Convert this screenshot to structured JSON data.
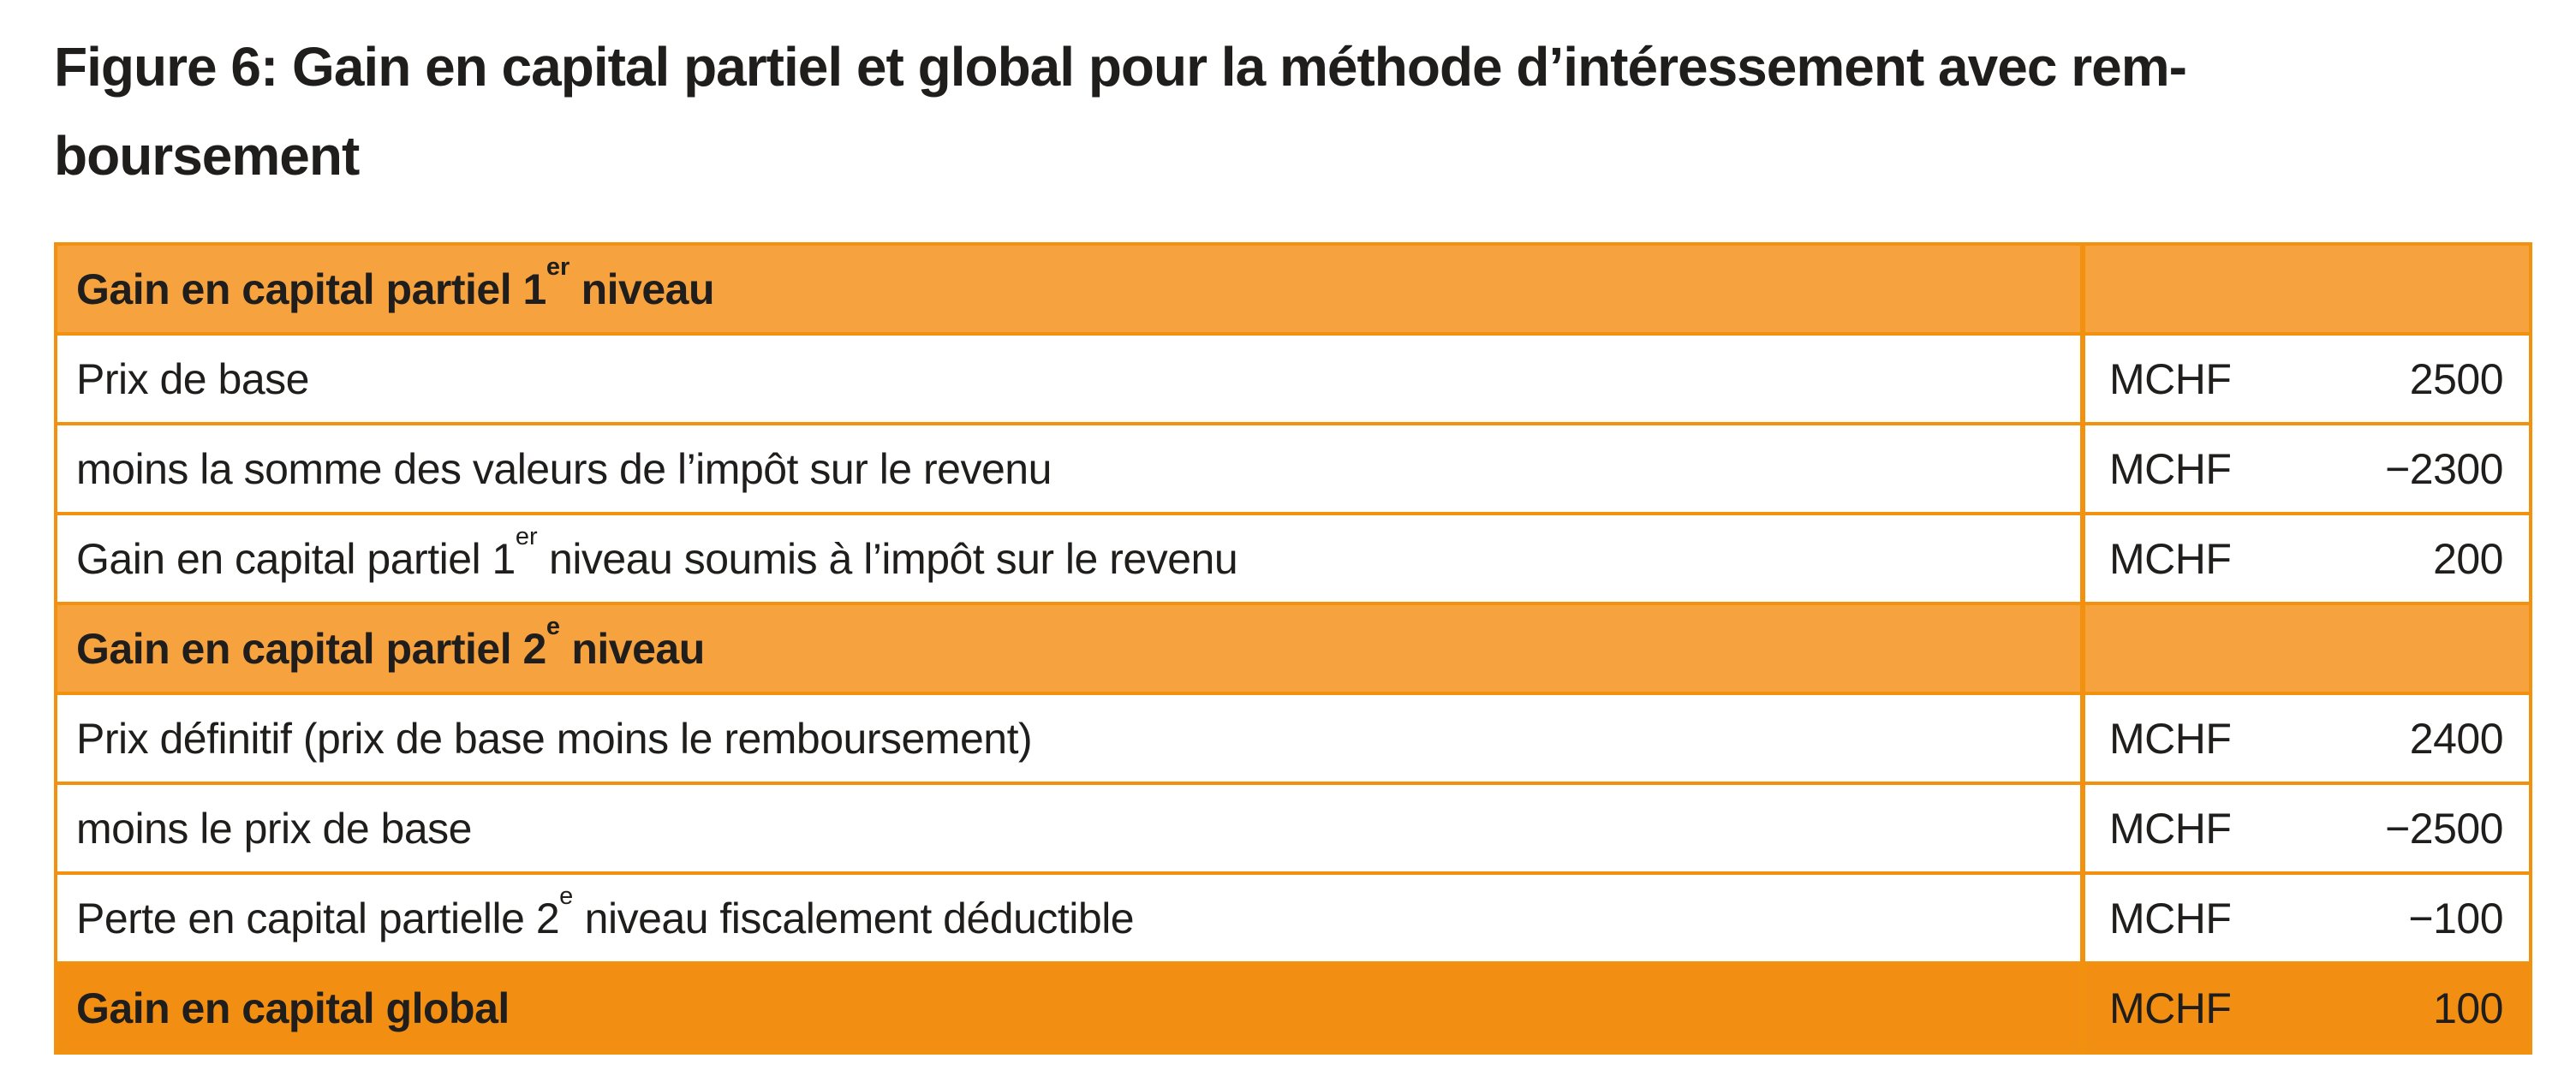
{
  "figure": {
    "title_line1": "Figure 6: Gain en capital partiel et global pour la méthode d’intéressement avec rem-",
    "title_line2": "boursement"
  },
  "colors": {
    "header_bg": "#f6a23e",
    "total_bg": "#f28e12",
    "border": "#f2910d",
    "text": "#1f1e1c"
  },
  "table": {
    "rows": [
      {
        "type": "section",
        "label_before": "Gain en capital partiel 1",
        "sup": "er",
        "label_after": " niveau"
      },
      {
        "type": "data",
        "label_before": "Prix de base",
        "unit": "MCHF",
        "value": "2500"
      },
      {
        "type": "data",
        "label_before": "moins la somme des valeurs de l’impôt sur le revenu",
        "unit": "MCHF",
        "value": "−2300"
      },
      {
        "type": "data",
        "label_before": "Gain en capital partiel 1",
        "sup": "er",
        "label_after": " niveau soumis à l’impôt sur le revenu",
        "unit": "MCHF",
        "value": "200"
      },
      {
        "type": "section",
        "label_before": "Gain en capital partiel 2",
        "sup": "e",
        "label_after": " niveau"
      },
      {
        "type": "data",
        "label_before": "Prix définitif (prix de base moins le remboursement)",
        "unit": "MCHF",
        "value": "2400"
      },
      {
        "type": "data",
        "label_before": "moins le prix de base",
        "unit": "MCHF",
        "value": "−2500"
      },
      {
        "type": "data",
        "label_before": "Perte en capital partielle 2",
        "sup": "e",
        "label_after": " niveau fiscalement déductible",
        "unit": "MCHF",
        "value": "−100"
      },
      {
        "type": "total",
        "label_before": "Gain en capital global",
        "unit": "MCHF",
        "value": "100"
      }
    ]
  }
}
